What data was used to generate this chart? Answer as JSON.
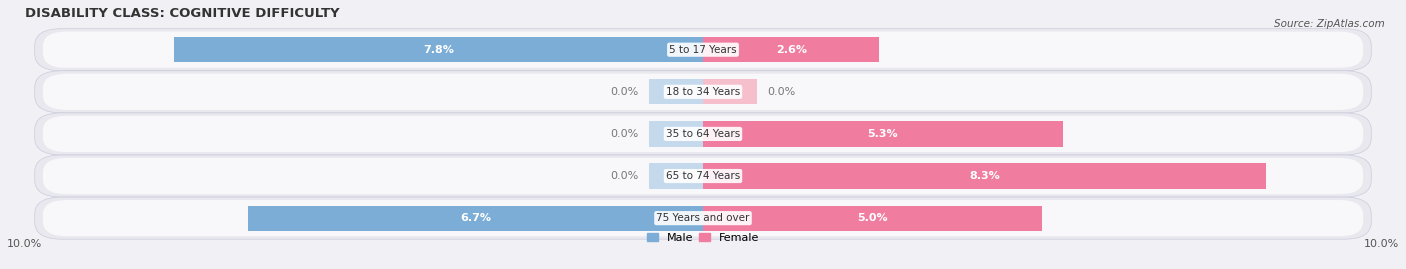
{
  "title": "DISABILITY CLASS: COGNITIVE DIFFICULTY",
  "source": "Source: ZipAtlas.com",
  "categories": [
    "5 to 17 Years",
    "18 to 34 Years",
    "35 to 64 Years",
    "65 to 74 Years",
    "75 Years and over"
  ],
  "male_values": [
    7.8,
    0.0,
    0.0,
    0.0,
    6.7
  ],
  "female_values": [
    2.6,
    0.0,
    5.3,
    8.3,
    5.0
  ],
  "male_color": "#7badd6",
  "female_color": "#f07ca0",
  "male_stub_color": "#c5d9ec",
  "female_stub_color": "#f5c0cc",
  "zero_label_color": "#777777",
  "max_value": 10.0,
  "fig_bg_color": "#f0f0f5",
  "row_bg_color": "#e8e8ee",
  "row_inner_bg": "#f8f8fb",
  "title_fontsize": 9.5,
  "source_fontsize": 7.5,
  "bar_label_fontsize": 8,
  "category_fontsize": 7.5,
  "axis_label_fontsize": 8,
  "legend_fontsize": 8,
  "bar_height": 0.6,
  "stub_size": 0.8
}
